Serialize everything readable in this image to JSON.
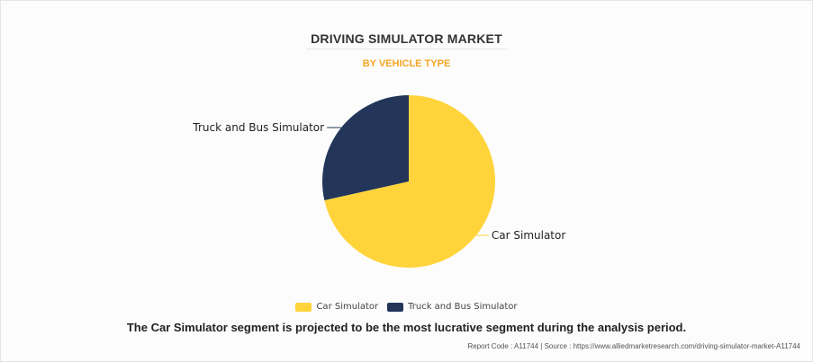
{
  "header": {
    "title": "DRIVING SIMULATOR MARKET",
    "subtitle": "BY VEHICLE TYPE"
  },
  "chart_data": {
    "type": "pie",
    "title": "DRIVING SIMULATOR MARKET",
    "subtitle": "BY VEHICLE TYPE",
    "categories": [
      "Car Simulator",
      "Truck and Bus Simulator"
    ],
    "values": [
      71.5,
      28.5
    ],
    "unit": "%",
    "colors": [
      "#FFD43B",
      "#233659"
    ],
    "legend_position": "bottom"
  },
  "legend": {
    "items": [
      {
        "label": "Car Simulator",
        "color": "#FFD43B"
      },
      {
        "label": "Truck and Bus Simulator",
        "color": "#233659"
      }
    ]
  },
  "caption": "The Car Simulator segment is projected to be the most lucrative segment during the analysis period.",
  "footer": {
    "report_code": "Report Code : A11744",
    "separator": "|",
    "source": "Source : https://www.alliedmarketresearch.com/driving-simulator-market-A11744"
  }
}
